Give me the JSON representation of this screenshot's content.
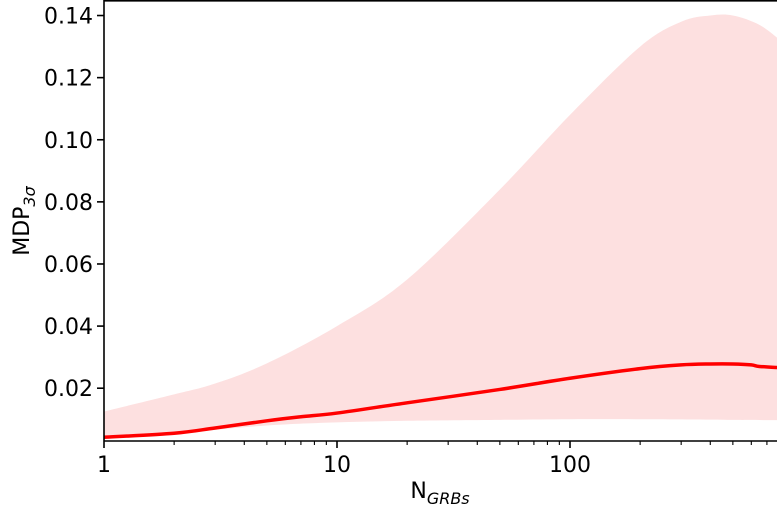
{
  "chart_data": {
    "type": "area",
    "x_scale": "log",
    "xlim": [
      1,
      800
    ],
    "ylim": [
      0.003,
      0.145
    ],
    "x_ticks": [
      1,
      10,
      100
    ],
    "x_tick_labels": [
      "1",
      "10",
      "100"
    ],
    "y_ticks": [
      0.02,
      0.04,
      0.06,
      0.08,
      0.1,
      0.12,
      0.14
    ],
    "y_tick_labels": [
      "0.02",
      "0.04",
      "0.06",
      "0.08",
      "0.10",
      "0.12",
      "0.14"
    ],
    "xlabel": {
      "main": "N",
      "sub": "GRBs"
    },
    "ylabel": {
      "main": "MDP",
      "sub": "3σ"
    },
    "grid": false,
    "series": [
      {
        "kind": "line",
        "color": "#ff0000",
        "points": [
          [
            1,
            0.0042
          ],
          [
            2,
            0.0055
          ],
          [
            3,
            0.0072
          ],
          [
            5,
            0.0095
          ],
          [
            7,
            0.0108
          ],
          [
            10,
            0.012
          ],
          [
            20,
            0.0153
          ],
          [
            50,
            0.0196
          ],
          [
            100,
            0.0232
          ],
          [
            200,
            0.0263
          ],
          [
            300,
            0.0275
          ],
          [
            400,
            0.0278
          ],
          [
            500,
            0.0278
          ],
          [
            600,
            0.0275
          ],
          [
            650,
            0.027
          ],
          [
            800,
            0.0266
          ]
        ]
      },
      {
        "kind": "band",
        "color": "#fde0e0",
        "upper": [
          [
            1,
            0.0125
          ],
          [
            2,
            0.018
          ],
          [
            3,
            0.0215
          ],
          [
            5,
            0.028
          ],
          [
            10,
            0.04
          ],
          [
            20,
            0.055
          ],
          [
            50,
            0.084
          ],
          [
            100,
            0.108
          ],
          [
            200,
            0.13
          ],
          [
            300,
            0.138
          ],
          [
            400,
            0.14
          ],
          [
            500,
            0.14
          ],
          [
            650,
            0.137
          ],
          [
            800,
            0.132
          ]
        ],
        "lower": [
          [
            1,
            0.004
          ],
          [
            2,
            0.0055
          ],
          [
            5,
            0.008
          ],
          [
            10,
            0.009
          ],
          [
            20,
            0.0095
          ],
          [
            50,
            0.0098
          ],
          [
            100,
            0.01
          ],
          [
            200,
            0.01
          ],
          [
            500,
            0.0098
          ],
          [
            800,
            0.0097
          ]
        ]
      }
    ]
  }
}
